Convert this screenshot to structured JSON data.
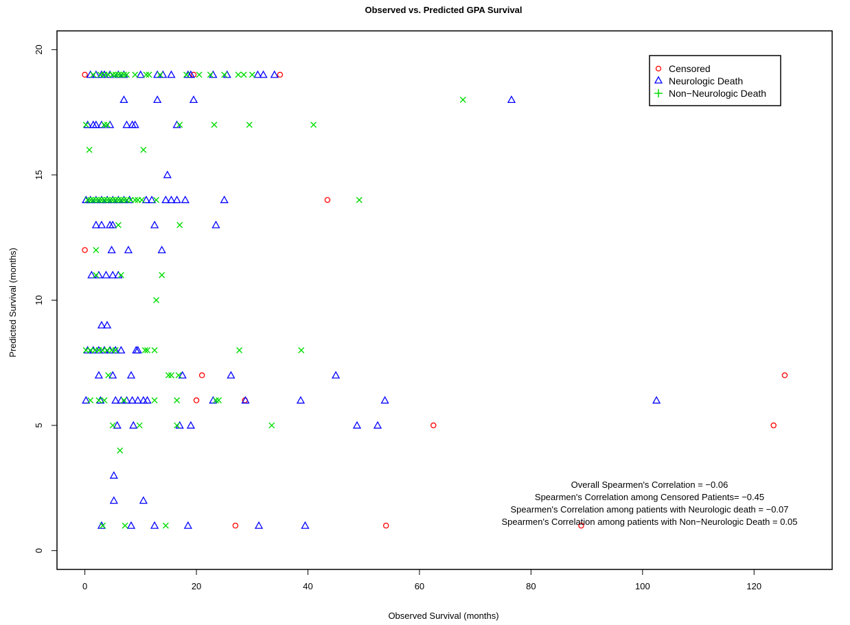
{
  "chart_data": {
    "type": "scatter",
    "title": "Observed vs. Predicted GPA Survival",
    "xlabel": "Observed Survival (months)",
    "ylabel": "Predicted Survival (months)",
    "xlim": [
      -5,
      134
    ],
    "ylim": [
      -0.75,
      20.75
    ],
    "xticks": [
      0,
      20,
      40,
      60,
      80,
      100,
      120
    ],
    "yticks": [
      0,
      5,
      10,
      15,
      20
    ],
    "grid": false,
    "legend_position": "top-right",
    "series": [
      {
        "name": "Censored",
        "marker": "circle",
        "color": "#ff0000",
        "points": [
          [
            0,
            19
          ],
          [
            19.5,
            19
          ],
          [
            35,
            19
          ],
          [
            0,
            12
          ],
          [
            43.5,
            14
          ],
          [
            21,
            7
          ],
          [
            20,
            6
          ],
          [
            28.7,
            6
          ],
          [
            125.5,
            7
          ],
          [
            62.5,
            5
          ],
          [
            123.5,
            5
          ],
          [
            27,
            1
          ],
          [
            54,
            1
          ],
          [
            89,
            1
          ]
        ]
      },
      {
        "name": "Neurologic Death",
        "marker": "triangle",
        "color": "#0000ff",
        "points": [
          [
            1,
            19
          ],
          [
            2,
            19
          ],
          [
            3,
            19
          ],
          [
            3.5,
            19
          ],
          [
            4.5,
            19
          ],
          [
            6,
            19
          ],
          [
            7,
            19
          ],
          [
            10,
            19
          ],
          [
            13,
            19
          ],
          [
            14,
            19
          ],
          [
            15.5,
            19
          ],
          [
            18.5,
            19
          ],
          [
            19,
            19
          ],
          [
            23,
            19
          ],
          [
            25.5,
            19
          ],
          [
            31,
            19
          ],
          [
            32,
            19
          ],
          [
            34,
            19
          ],
          [
            7,
            18
          ],
          [
            13,
            18
          ],
          [
            19.5,
            18
          ],
          [
            76.5,
            18
          ],
          [
            0.5,
            17
          ],
          [
            1.5,
            17
          ],
          [
            2,
            17
          ],
          [
            3,
            17
          ],
          [
            4.5,
            17
          ],
          [
            7.5,
            17
          ],
          [
            8.5,
            17
          ],
          [
            9,
            17
          ],
          [
            16.5,
            17
          ],
          [
            14.8,
            15
          ],
          [
            0.2,
            14
          ],
          [
            1,
            14
          ],
          [
            2,
            14
          ],
          [
            3,
            14
          ],
          [
            4,
            14
          ],
          [
            5,
            14
          ],
          [
            6,
            14
          ],
          [
            7,
            14
          ],
          [
            8,
            14
          ],
          [
            11,
            14
          ],
          [
            12,
            14
          ],
          [
            14.5,
            14
          ],
          [
            15.5,
            14
          ],
          [
            16.5,
            14
          ],
          [
            18,
            14
          ],
          [
            25,
            14
          ],
          [
            2,
            13
          ],
          [
            3,
            13
          ],
          [
            4.5,
            13
          ],
          [
            5,
            13
          ],
          [
            12.5,
            13
          ],
          [
            23.5,
            13
          ],
          [
            4.8,
            12
          ],
          [
            7.8,
            12
          ],
          [
            13.8,
            12
          ],
          [
            1.2,
            11
          ],
          [
            2.5,
            11
          ],
          [
            3.8,
            11
          ],
          [
            5,
            11
          ],
          [
            6,
            11
          ],
          [
            3,
            9
          ],
          [
            4,
            9
          ],
          [
            0.5,
            8
          ],
          [
            1.5,
            8
          ],
          [
            2.5,
            8
          ],
          [
            3.5,
            8
          ],
          [
            4.5,
            8
          ],
          [
            5.5,
            8
          ],
          [
            6.5,
            8
          ],
          [
            9.2,
            8
          ],
          [
            9.5,
            8
          ],
          [
            2.5,
            7
          ],
          [
            5,
            7
          ],
          [
            8.3,
            7
          ],
          [
            17.5,
            7
          ],
          [
            26.2,
            7
          ],
          [
            45,
            7
          ],
          [
            0.2,
            6
          ],
          [
            2.8,
            6
          ],
          [
            5.5,
            6
          ],
          [
            6.5,
            6
          ],
          [
            7.5,
            6
          ],
          [
            8.5,
            6
          ],
          [
            9.5,
            6
          ],
          [
            10.5,
            6
          ],
          [
            11.2,
            6
          ],
          [
            23,
            6
          ],
          [
            28.8,
            6
          ],
          [
            38.7,
            6
          ],
          [
            53.8,
            6
          ],
          [
            102.5,
            6
          ],
          [
            5.8,
            5
          ],
          [
            8.7,
            5
          ],
          [
            17,
            5
          ],
          [
            19,
            5
          ],
          [
            48.8,
            5
          ],
          [
            52.5,
            5
          ],
          [
            5.2,
            3
          ],
          [
            5.2,
            2
          ],
          [
            10.5,
            2
          ],
          [
            3,
            1
          ],
          [
            8.3,
            1
          ],
          [
            12.5,
            1
          ],
          [
            18.5,
            1
          ],
          [
            31.2,
            1
          ],
          [
            39.5,
            1
          ]
        ]
      },
      {
        "name": "Non-Neurologic Death",
        "marker": "cross",
        "color": "#00dd00",
        "points": [
          [
            1.5,
            19
          ],
          [
            2.8,
            19
          ],
          [
            3.5,
            19
          ],
          [
            4.2,
            19
          ],
          [
            5,
            19
          ],
          [
            5.5,
            19
          ],
          [
            6,
            19
          ],
          [
            6.5,
            19
          ],
          [
            7,
            19
          ],
          [
            7.5,
            19
          ],
          [
            9,
            19
          ],
          [
            11,
            19
          ],
          [
            11.5,
            19
          ],
          [
            13.5,
            19
          ],
          [
            18.2,
            19
          ],
          [
            20.5,
            19
          ],
          [
            22.5,
            19
          ],
          [
            25,
            19
          ],
          [
            27.5,
            19
          ],
          [
            28.5,
            19
          ],
          [
            30,
            19
          ],
          [
            67.8,
            18
          ],
          [
            0.2,
            17
          ],
          [
            3.5,
            17
          ],
          [
            4,
            17
          ],
          [
            17,
            17
          ],
          [
            23.2,
            17
          ],
          [
            29.5,
            17
          ],
          [
            41,
            17
          ],
          [
            0.8,
            16
          ],
          [
            10.5,
            16
          ],
          [
            0.5,
            14
          ],
          [
            1,
            14
          ],
          [
            1.5,
            14
          ],
          [
            2,
            14
          ],
          [
            2.5,
            14
          ],
          [
            3,
            14
          ],
          [
            3.5,
            14
          ],
          [
            4,
            14
          ],
          [
            4.5,
            14
          ],
          [
            5,
            14
          ],
          [
            5.5,
            14
          ],
          [
            6,
            14
          ],
          [
            6.5,
            14
          ],
          [
            7,
            14
          ],
          [
            7.5,
            14
          ],
          [
            8.2,
            14
          ],
          [
            9,
            14
          ],
          [
            9.5,
            14
          ],
          [
            10.2,
            14
          ],
          [
            12.8,
            14
          ],
          [
            49.2,
            14
          ],
          [
            6,
            13
          ],
          [
            17,
            13
          ],
          [
            2,
            12
          ],
          [
            2,
            11
          ],
          [
            6.5,
            11
          ],
          [
            13.8,
            11
          ],
          [
            12.8,
            10
          ],
          [
            0.2,
            8
          ],
          [
            1,
            8
          ],
          [
            1.8,
            8
          ],
          [
            2.5,
            8
          ],
          [
            3.2,
            8
          ],
          [
            4,
            8
          ],
          [
            4.8,
            8
          ],
          [
            5.5,
            8
          ],
          [
            10.8,
            8
          ],
          [
            11.2,
            8
          ],
          [
            12.5,
            8
          ],
          [
            27.7,
            8
          ],
          [
            38.8,
            8
          ],
          [
            4.2,
            7
          ],
          [
            15,
            7
          ],
          [
            15.5,
            7
          ],
          [
            16.8,
            7
          ],
          [
            1,
            6
          ],
          [
            2.5,
            6
          ],
          [
            3.5,
            6
          ],
          [
            7,
            6
          ],
          [
            12.5,
            6
          ],
          [
            16.5,
            6
          ],
          [
            23.5,
            6
          ],
          [
            24,
            6
          ],
          [
            5,
            5
          ],
          [
            9.8,
            5
          ],
          [
            16.5,
            5
          ],
          [
            33.5,
            5
          ],
          [
            6.3,
            4
          ],
          [
            3.2,
            1
          ],
          [
            7.2,
            1
          ],
          [
            14.5,
            1
          ]
        ]
      }
    ],
    "annotations": [
      "Overall Spearmen's Correlation = −0.06",
      "Spearmen's Correlation among Censored Patients= −0.45",
      "Spearmen's Correlation among patients with Neurologic death = −0.07",
      "Spearmen's Correlation among patients with Non−Neurologic Death = 0.05"
    ],
    "legend_labels": [
      "Censored",
      "Neurologic Death",
      "Non−Neurologic Death"
    ]
  }
}
